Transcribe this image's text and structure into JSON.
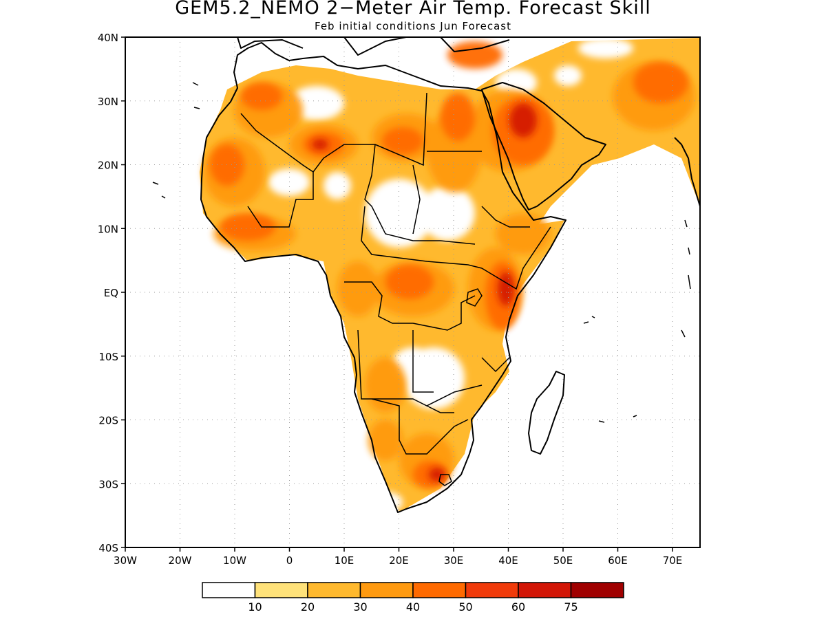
{
  "title": "GEM5.2_NEMO 2−Meter Air Temp. Forecast Skill",
  "subtitle": "Feb initial conditions  Jun Forecast",
  "map": {
    "lon_range": [
      -30,
      75
    ],
    "lat_range": [
      -40,
      40
    ],
    "grid": true,
    "y_ticks": [
      "40N",
      "30N",
      "20N",
      "10N",
      "EQ",
      "10S",
      "20S",
      "30S",
      "40S"
    ],
    "x_ticks": [
      "30W",
      "20W",
      "10W",
      "0",
      "10E",
      "20E",
      "30E",
      "40E",
      "50E",
      "60E",
      "70E"
    ]
  },
  "colorbar": {
    "labels": [
      "10",
      "20",
      "30",
      "40",
      "50",
      "60",
      "75"
    ],
    "colors": [
      "#ffffff",
      "#ffe27a",
      "#ffb92e",
      "#ff9a10",
      "#ff6a00",
      "#f03a0a",
      "#d21606",
      "#a00000"
    ]
  }
}
